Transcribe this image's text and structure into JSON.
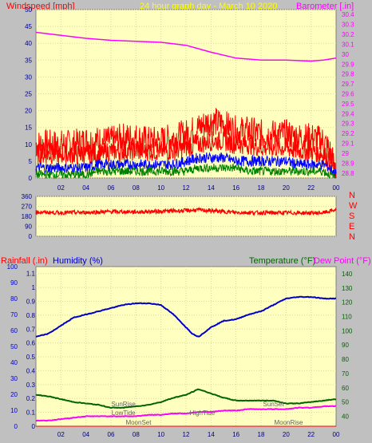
{
  "header": {
    "wind_label": "Windspeed [mph]",
    "graph_title": "24 hour graph day - March 10 2020",
    "baro_label": "Barometer [.in]"
  },
  "footer_labels": {
    "rainfall": "Rainfall (.in)",
    "humidity": "Humidity (%)",
    "temperature": "Temperature (°F)",
    "dewpoint": "Dew Point (°F)"
  },
  "colors": {
    "page_bg": "#c0c0c0",
    "plot_bg": "#ffffc0",
    "grid": "#d8d8a0",
    "wind": "#ff0000",
    "gust": "#ff0000",
    "wind_avg": "#0000ff",
    "wind_min": "#008000",
    "barometer": "#ff00ff",
    "direction": "#ff0000",
    "humidity": "#0000c8",
    "temperature": "#006400",
    "dewpoint": "#ff00ff",
    "rain": "#ff0000",
    "axis_text": "#000080",
    "event_text": "#606060",
    "title_text": "#ffff00"
  },
  "x_ticks": [
    "02",
    "04",
    "06",
    "08",
    "10",
    "12",
    "14",
    "16",
    "18",
    "20",
    "22",
    "00"
  ],
  "chart_data": [
    {
      "name": "wind_barometer",
      "type": "line",
      "x_range_hours": [
        0,
        24
      ],
      "wind_axis": {
        "ticks": [
          "0",
          "5",
          "10",
          "15",
          "20",
          "25",
          "30",
          "35",
          "40",
          "45",
          "50"
        ],
        "ylim": [
          0,
          50
        ]
      },
      "baro_axis": {
        "ticks": [
          "28.8",
          "28.9",
          "29",
          "29.1",
          "29.2",
          "29.3",
          "29.4",
          "29.5",
          "29.6",
          "29.7",
          "29.8",
          "29.9",
          "30",
          "30.1",
          "30.2",
          "30.3",
          "30.4"
        ],
        "ylim": [
          28.75,
          30.45
        ]
      },
      "series": [
        {
          "name": "Windspeed",
          "unit": "mph",
          "x": [
            0,
            1,
            2,
            3,
            4,
            5,
            6,
            7,
            8,
            9,
            10,
            11,
            12,
            13,
            14,
            15,
            16,
            17,
            18,
            19,
            20,
            21,
            22,
            23,
            23.5,
            24
          ],
          "y": [
            7,
            7,
            7,
            7,
            7,
            7,
            8,
            8,
            8,
            8,
            8,
            8,
            9,
            10,
            11,
            11,
            10,
            10,
            9,
            9,
            9,
            8,
            8,
            7,
            5,
            1
          ]
        },
        {
          "name": "Gust",
          "unit": "mph",
          "x": [
            0,
            1,
            2,
            3,
            4,
            5,
            6,
            7,
            8,
            9,
            10,
            11,
            12,
            13,
            14,
            15,
            16,
            17,
            18,
            19,
            20,
            21,
            22,
            23,
            23.5,
            24
          ],
          "y": [
            10,
            10,
            10,
            10,
            11,
            11,
            11,
            12,
            12,
            11,
            11,
            12,
            13,
            15,
            17,
            16,
            14,
            14,
            13,
            13,
            13,
            12,
            12,
            11,
            8,
            2
          ]
        },
        {
          "name": "Wind average",
          "unit": "mph",
          "x": [
            0,
            1,
            2,
            3,
            4,
            5,
            6,
            7,
            8,
            9,
            10,
            11,
            12,
            13,
            14,
            15,
            16,
            17,
            18,
            19,
            20,
            21,
            22,
            23,
            23.5,
            24
          ],
          "y": [
            3,
            3,
            3,
            3,
            3,
            4,
            4,
            4,
            4,
            4,
            4,
            4,
            5,
            6,
            6,
            6,
            5,
            5,
            5,
            5,
            5,
            4,
            4,
            4,
            3,
            1
          ]
        },
        {
          "name": "Wind minimum",
          "unit": "mph",
          "x": [
            0,
            1,
            2,
            3,
            4,
            5,
            6,
            7,
            8,
            9,
            10,
            11,
            12,
            13,
            14,
            15,
            16,
            17,
            18,
            19,
            20,
            21,
            22,
            23,
            23.5,
            24
          ],
          "y": [
            1,
            1,
            1,
            1,
            1,
            2,
            2,
            2,
            2,
            2,
            2,
            2,
            2,
            3,
            3,
            3,
            3,
            2,
            2,
            2,
            2,
            2,
            2,
            2,
            1,
            0
          ]
        },
        {
          "name": "Barometer",
          "unit": "in",
          "x": [
            0,
            2,
            4,
            6,
            8,
            10,
            12,
            14,
            16,
            18,
            20,
            22,
            23,
            24
          ],
          "y": [
            30.22,
            30.19,
            30.16,
            30.14,
            30.13,
            30.12,
            30.09,
            30.02,
            29.96,
            29.94,
            29.94,
            29.93,
            29.94,
            29.96
          ]
        }
      ]
    },
    {
      "name": "wind_direction",
      "type": "line",
      "x_range_hours": [
        0,
        24
      ],
      "axis": {
        "ticks": [
          "0",
          "90",
          "180",
          "270",
          "360"
        ],
        "ylim": [
          0,
          360
        ]
      },
      "compass": [
        "N",
        "W",
        "S",
        "E",
        "N"
      ],
      "series": [
        {
          "name": "Direction",
          "unit": "deg",
          "x": [
            0,
            2,
            4,
            6,
            8,
            10,
            12,
            13,
            14,
            16,
            18,
            20,
            22,
            23,
            24
          ],
          "y": [
            218,
            212,
            215,
            222,
            220,
            225,
            232,
            238,
            230,
            215,
            212,
            212,
            210,
            212,
            240
          ]
        }
      ]
    },
    {
      "name": "rain_humidity_temperature",
      "type": "line",
      "x_range_hours": [
        0,
        24
      ],
      "rain_axis": {
        "ticks": [
          "0",
          "0.1",
          "0.2",
          "0.3",
          "0.4",
          "0.5",
          "0.6",
          "0.7",
          "0.8",
          "0.9",
          "1",
          "1.1"
        ],
        "ylim": [
          0,
          1.15
        ]
      },
      "humidity_axis": {
        "ticks": [
          "0",
          "10",
          "20",
          "30",
          "40",
          "50",
          "60",
          "70",
          "80",
          "90",
          "100"
        ],
        "ylim": [
          0,
          100
        ]
      },
      "temperature_axis": {
        "ticks": [
          "40",
          "50",
          "60",
          "70",
          "80",
          "90",
          "100",
          "110",
          "120",
          "130",
          "140"
        ],
        "ylim": [
          33,
          145
        ]
      },
      "series": [
        {
          "name": "Humidity",
          "unit": "%",
          "x": [
            0,
            1,
            2,
            3,
            4,
            5,
            6,
            7,
            8,
            9,
            10,
            11,
            12,
            12.5,
            13,
            14,
            15,
            16,
            17,
            18,
            19,
            20,
            21,
            22,
            23,
            24
          ],
          "y": [
            56,
            58,
            63,
            68,
            70,
            72,
            74,
            76,
            77,
            77,
            76,
            70,
            62,
            58,
            56,
            62,
            66,
            67,
            70,
            72,
            76,
            80,
            81,
            81,
            80,
            80
          ]
        },
        {
          "name": "Temperature",
          "unit": "°F",
          "x": [
            0,
            1,
            2,
            3,
            4,
            5,
            6,
            7,
            8,
            9,
            10,
            11,
            12,
            13,
            14,
            15,
            16,
            17,
            18,
            19,
            20,
            21,
            22,
            23,
            24
          ],
          "y": [
            55,
            54,
            52,
            50,
            49,
            48,
            46,
            46,
            47,
            48,
            50,
            53,
            55,
            59,
            56,
            53,
            51,
            51,
            51,
            51,
            49,
            49,
            50,
            51,
            52
          ]
        },
        {
          "name": "Dew Point",
          "unit": "°F",
          "x": [
            0,
            1,
            2,
            3,
            4,
            5,
            6,
            7,
            8,
            9,
            10,
            11,
            12,
            13,
            14,
            15,
            16,
            17,
            18,
            19,
            20,
            21,
            22,
            23,
            24
          ],
          "y": [
            37,
            37,
            38,
            39,
            40,
            40,
            40,
            40,
            40,
            41,
            41,
            42,
            42,
            43,
            43,
            44,
            44,
            45,
            45,
            45,
            45,
            46,
            46,
            47,
            47
          ]
        },
        {
          "name": "Rainfall",
          "unit": "in",
          "x": [
            0,
            24
          ],
          "y": [
            0,
            0
          ]
        }
      ],
      "events": [
        {
          "label": "SunRise",
          "hour": 7.0,
          "row": 1
        },
        {
          "label": "LowTide",
          "hour": 7.0,
          "row": 2
        },
        {
          "label": "MoonSet",
          "hour": 8.2,
          "row": 3
        },
        {
          "label": "HighTide",
          "hour": 13.3,
          "row": 2
        },
        {
          "label": "SunSet",
          "hour": 19.0,
          "row": 1
        },
        {
          "label": "MoonRise",
          "hour": 20.2,
          "row": 3
        }
      ]
    }
  ]
}
